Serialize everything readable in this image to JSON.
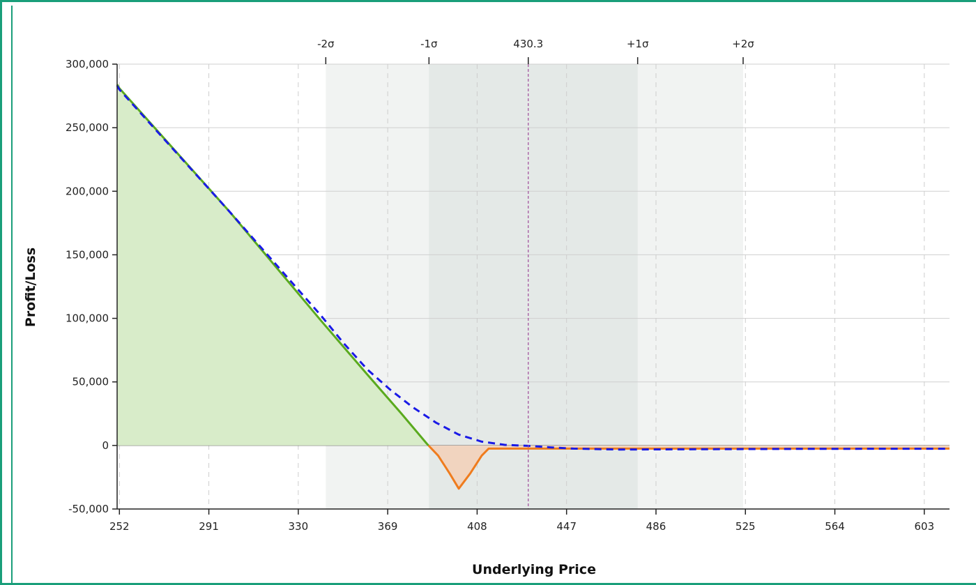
{
  "chart_data": {
    "type": "line",
    "xlabel": "Underlying Price",
    "ylabel": "Profit/Loss",
    "xlim": [
      251,
      614
    ],
    "ylim": [
      -50000,
      300000
    ],
    "grid": true,
    "x_ticks": [
      252,
      291,
      330,
      369,
      408,
      447,
      486,
      525,
      564,
      603
    ],
    "y_ticks": [
      -50000,
      0,
      50000,
      100000,
      150000,
      200000,
      250000,
      300000
    ],
    "y_tick_labels": [
      "-50,000",
      "0",
      "50,000",
      "100,000",
      "150,000",
      "200,000",
      "250,000",
      "300,000"
    ],
    "top_markers": [
      {
        "label": "-2σ",
        "x": 342
      },
      {
        "label": "-1σ",
        "x": 387
      },
      {
        "label": "430.3",
        "x": 430.3
      },
      {
        "label": "+1σ",
        "x": 478
      },
      {
        "label": "+2σ",
        "x": 524
      }
    ],
    "sigma_bands": {
      "outer": [
        342,
        524
      ],
      "inner": [
        387,
        478
      ]
    },
    "current_price": 430.3,
    "series": [
      {
        "style": "solid",
        "x": [
          251,
          252,
          300,
          340,
          360,
          375,
          386,
          391,
          396,
          400,
          405,
          410,
          413,
          420,
          430,
          447,
          486,
          525,
          564,
          603,
          614
        ],
        "y": [
          284000,
          281000,
          184000,
          98000,
          56000,
          25000,
          1500,
          -8000,
          -22000,
          -34000,
          -22000,
          -8000,
          -2500,
          -2500,
          -2500,
          -2500,
          -2500,
          -2500,
          -2500,
          -2500,
          -2500
        ]
      },
      {
        "style": "dashed",
        "x": [
          251,
          252,
          300,
          340,
          350,
          360,
          370,
          380,
          390,
          400,
          410,
          420,
          430,
          440,
          450,
          470,
          500,
          550,
          600,
          614
        ],
        "y": [
          283000,
          280000,
          184000,
          102000,
          80000,
          60000,
          44000,
          30000,
          18000,
          8500,
          3000,
          500,
          -300,
          -1500,
          -2500,
          -3200,
          -3000,
          -2700,
          -2600,
          -2600
        ]
      }
    ],
    "colors": {
      "profit_line": "#5aaa1e",
      "loss_line": "#ef7c1e",
      "profit_fill": "#d8ecc9",
      "loss_fill": "#f1d4bf",
      "dashed_line": "#1a1ae6",
      "marker_line": "#a04a9a",
      "outer_band": "#f1f3f2",
      "inner_band": "#e4e9e7",
      "frame": "#1a9e7a"
    }
  }
}
